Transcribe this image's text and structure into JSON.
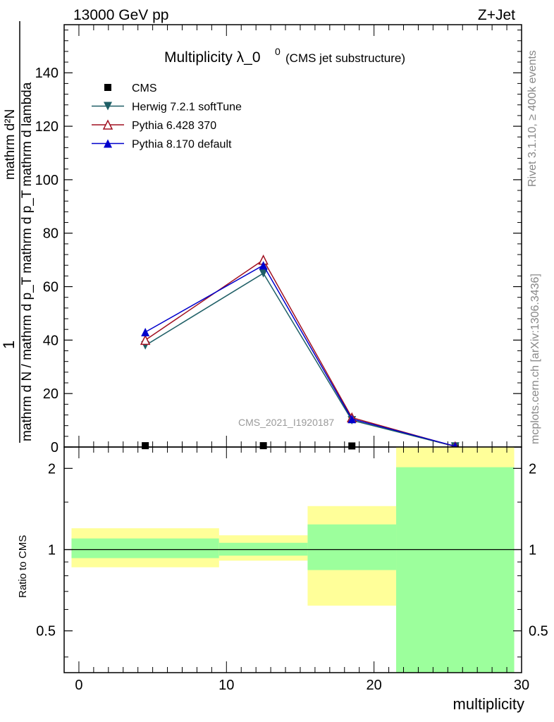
{
  "header": {
    "left": "13000 GeV pp",
    "right": "Z+Jet"
  },
  "title": {
    "main": "Multiplicity λ_0",
    "sup": "0",
    "sub": "(CMS jet substructure)"
  },
  "side_labels": {
    "rivet": "Rivet 3.1.10, ≥ 400k events",
    "mcplots": "mcplots.cern.ch [arXiv:1306.3436]"
  },
  "watermark": "CMS_2021_I1920187",
  "y_axis_label": {
    "numerator_one": "1",
    "numerator_rest": "mathrm d²N",
    "denominator": "mathrm d N / mathrm d p_T mathrm d p_T mathrm d lambda"
  },
  "ratio_ylabel": "Ratio to CMS",
  "x_axis_label": "multiplicity",
  "colors": {
    "cms": "#000000",
    "herwig": "#1f5f66",
    "pythia6": "#a01020",
    "pythia8": "#0000cc",
    "band_inner": "#9cff9c",
    "band_outer": "#ffff99"
  },
  "chart_data": [
    {
      "type": "line",
      "panel": "main",
      "xlim": [
        -1,
        30
      ],
      "ylim": [
        0,
        158
      ],
      "yticks": [
        0,
        20,
        40,
        60,
        80,
        100,
        120,
        140
      ],
      "x": [
        4.5,
        12.5,
        18.5,
        25.5
      ],
      "legend": [
        "CMS",
        "Herwig 7.2.1 softTune",
        "Pythia 6.428 370",
        "Pythia 8.170 default"
      ],
      "legend_position": "top-left",
      "series": [
        {
          "name": "CMS",
          "marker": "square",
          "values": [
            0.5,
            0.5,
            0.4,
            0.0
          ]
        },
        {
          "name": "Herwig 7.2.1 softTune",
          "marker": "triangle-down",
          "values": [
            38,
            65,
            10,
            0.2
          ]
        },
        {
          "name": "Pythia 6.428 370",
          "marker": "triangle-up-open",
          "values": [
            40,
            70,
            11,
            0.2
          ]
        },
        {
          "name": "Pythia 8.170 default",
          "marker": "triangle-up",
          "values": [
            43,
            68,
            10.5,
            0.3
          ]
        }
      ]
    },
    {
      "type": "area",
      "panel": "ratio",
      "xlim": [
        -1,
        30
      ],
      "ylim": [
        0.35,
        2.4
      ],
      "scale": "log",
      "yticks": [
        0.5,
        1,
        2
      ],
      "ytick_labels": [
        "0.5",
        "1",
        "2"
      ],
      "xticks": [
        0,
        10,
        20,
        30
      ],
      "xtick_labels": [
        "0",
        "10",
        "20",
        "30"
      ],
      "reference_line": 1,
      "bins": [
        {
          "x_low": -0.5,
          "x_high": 9.5,
          "inner_low": 0.93,
          "inner_high": 1.1,
          "outer_low": 0.86,
          "outer_high": 1.2
        },
        {
          "x_low": 9.5,
          "x_high": 15.5,
          "inner_low": 0.95,
          "inner_high": 1.06,
          "outer_low": 0.91,
          "outer_high": 1.13
        },
        {
          "x_low": 15.5,
          "x_high": 21.5,
          "inner_low": 0.84,
          "inner_high": 1.24,
          "outer_low": 0.62,
          "outer_high": 1.45
        },
        {
          "x_low": 21.5,
          "x_high": 29.5,
          "inner_low": 0.35,
          "inner_high": 2.02,
          "outer_low": 0.35,
          "outer_high": 2.4
        }
      ]
    }
  ]
}
